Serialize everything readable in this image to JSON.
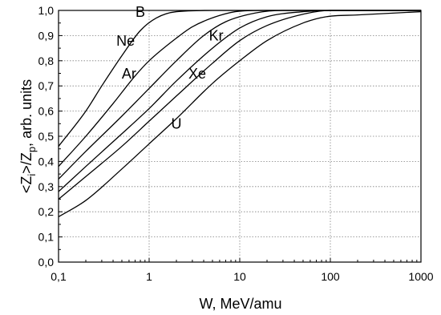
{
  "chart_data": {
    "type": "line",
    "title": "",
    "xlabel": "W,  MeV/amu",
    "ylabel_main": "<Z",
    "ylabel_sub1": "i",
    "ylabel_mid": ">/Z",
    "ylabel_sub2": "p",
    "ylabel_tail": ",  arb. units",
    "xscale": "log",
    "xlim": [
      0.1,
      1000
    ],
    "ylim": [
      0.0,
      1.0
    ],
    "grid": true,
    "x_ticks": [
      {
        "value": 0.1,
        "label": "0,1"
      },
      {
        "value": 1,
        "label": "1"
      },
      {
        "value": 10,
        "label": "10"
      },
      {
        "value": 100,
        "label": "100"
      },
      {
        "value": 1000,
        "label": "1000"
      }
    ],
    "y_ticks": [
      {
        "value": 0.0,
        "label": "0,0"
      },
      {
        "value": 0.1,
        "label": "0,1"
      },
      {
        "value": 0.2,
        "label": "0,2"
      },
      {
        "value": 0.3,
        "label": "0,3"
      },
      {
        "value": 0.4,
        "label": "0,4"
      },
      {
        "value": 0.5,
        "label": "0,5"
      },
      {
        "value": 0.6,
        "label": "0,6"
      },
      {
        "value": 0.7,
        "label": "0,7"
      },
      {
        "value": 0.8,
        "label": "0,8"
      },
      {
        "value": 0.9,
        "label": "0,9"
      },
      {
        "value": 1.0,
        "label": "1,0"
      }
    ],
    "series": [
      {
        "name": "B",
        "label_at": [
          0.8,
          0.975
        ],
        "points": [
          [
            0.1,
            0.46
          ],
          [
            0.2,
            0.6
          ],
          [
            0.3,
            0.7
          ],
          [
            0.5,
            0.82
          ],
          [
            0.8,
            0.92
          ],
          [
            1.2,
            0.97
          ],
          [
            2,
            0.995
          ],
          [
            5,
            1.0
          ],
          [
            1000,
            1.0
          ]
        ]
      },
      {
        "name": "Ne",
        "label_at": [
          0.55,
          0.86
        ],
        "points": [
          [
            0.1,
            0.38
          ],
          [
            0.2,
            0.5
          ],
          [
            0.4,
            0.63
          ],
          [
            0.7,
            0.74
          ],
          [
            1,
            0.8
          ],
          [
            2,
            0.89
          ],
          [
            3,
            0.935
          ],
          [
            6,
            0.98
          ],
          [
            10,
            0.997
          ],
          [
            20,
            1.0
          ],
          [
            1000,
            1.0
          ]
        ]
      },
      {
        "name": "Ar",
        "label_at": [
          0.6,
          0.73
        ],
        "points": [
          [
            0.1,
            0.33
          ],
          [
            0.2,
            0.44
          ],
          [
            0.5,
            0.58
          ],
          [
            1,
            0.69
          ],
          [
            2,
            0.8
          ],
          [
            4,
            0.9
          ],
          [
            7,
            0.955
          ],
          [
            15,
            0.99
          ],
          [
            30,
            1.0
          ],
          [
            1000,
            1.0
          ]
        ]
      },
      {
        "name": "Kr",
        "label_at": [
          5.5,
          0.88
        ],
        "points": [
          [
            0.1,
            0.28
          ],
          [
            0.2,
            0.38
          ],
          [
            0.5,
            0.51
          ],
          [
            1,
            0.61
          ],
          [
            2,
            0.72
          ],
          [
            5,
            0.85
          ],
          [
            10,
            0.93
          ],
          [
            20,
            0.975
          ],
          [
            50,
            0.995
          ],
          [
            100,
            1.0
          ],
          [
            1000,
            1.0
          ]
        ]
      },
      {
        "name": "Xe",
        "label_at": [
          3.4,
          0.73
        ],
        "points": [
          [
            0.1,
            0.25
          ],
          [
            0.2,
            0.34
          ],
          [
            0.5,
            0.46
          ],
          [
            1,
            0.56
          ],
          [
            2,
            0.66
          ],
          [
            5,
            0.79
          ],
          [
            10,
            0.88
          ],
          [
            20,
            0.94
          ],
          [
            50,
            0.985
          ],
          [
            100,
            1.0
          ],
          [
            1000,
            1.0
          ]
        ]
      },
      {
        "name": "U",
        "label_at": [
          2.0,
          0.53
        ],
        "points": [
          [
            0.1,
            0.18
          ],
          [
            0.2,
            0.245
          ],
          [
            0.5,
            0.37
          ],
          [
            1,
            0.47
          ],
          [
            2,
            0.57
          ],
          [
            5,
            0.71
          ],
          [
            10,
            0.8
          ],
          [
            20,
            0.88
          ],
          [
            50,
            0.95
          ],
          [
            90,
            0.975
          ],
          [
            200,
            0.982
          ],
          [
            1000,
            0.995
          ]
        ]
      }
    ]
  }
}
